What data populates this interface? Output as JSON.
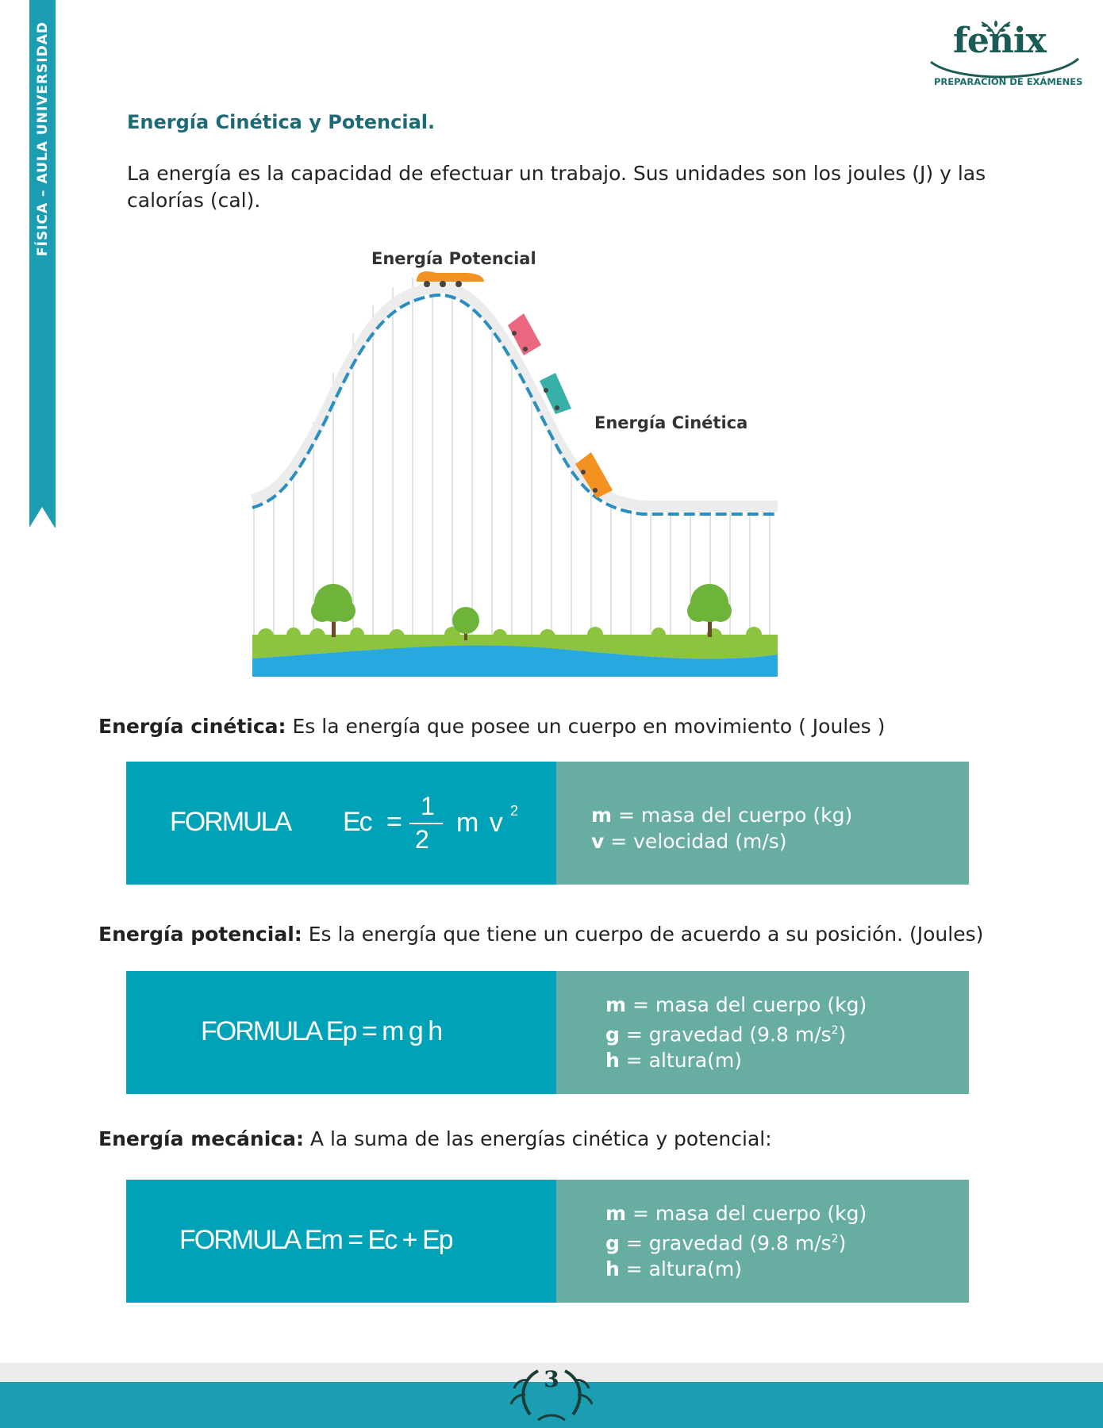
{
  "sidebar": {
    "label": "FÍSICA – AULA UNIVERSIDAD"
  },
  "logo": {
    "word": "fenix",
    "tagline": "PREPARACIÓN DE EXÁMENES"
  },
  "title": "Energía Cinética y Potencial.",
  "intro": "La energía es la capacidad de efectuar un trabajo. Sus unidades son los joules (J) y las calorías (cal).",
  "diagram": {
    "label_potential": "Energía Potencial",
    "label_kinetic": "Energía Cinética"
  },
  "kinetic": {
    "term": "Energía cinética:",
    "definition": " Es la energía que posee un cuerpo en movimiento ( Joules )",
    "formula_label": "FORMULA",
    "formula_lhs": "Ec",
    "formula_eq": "=",
    "fraction_num": "1",
    "fraction_den": "2",
    "formula_rhs": "m v",
    "exponent": "2",
    "vars": [
      {
        "sym": "m",
        "desc": " = masa del cuerpo (kg)"
      },
      {
        "sym": "v",
        "desc": " = velocidad (m/s)"
      }
    ]
  },
  "potential": {
    "term": "Energía potencial:",
    "definition": " Es la energía que tiene un cuerpo de acuerdo a su posición. (Joules)",
    "formula": "FORMULA  Ep  = m g h",
    "vars": [
      {
        "sym": "m",
        "desc": " = masa del cuerpo (kg)"
      },
      {
        "sym": "g",
        "desc": " = gravedad (9.8 m/s",
        "sup": "2",
        "tail": ")"
      },
      {
        "sym": "h",
        "desc": " = altura(m)"
      }
    ]
  },
  "mechanical": {
    "term": "Energía mecánica:",
    "definition": " A la suma de las energías cinética y potencial:",
    "formula": "FORMULA  Em  = Ec  + Ep",
    "vars": [
      {
        "sym": "m",
        "desc": " = masa del cuerpo (kg)"
      },
      {
        "sym": "g",
        "desc": " = gravedad (9.8 m/s",
        "sup": "2",
        "tail": ")"
      },
      {
        "sym": "h",
        "desc": " = altura(m)"
      }
    ]
  },
  "footer": {
    "page_number": "3"
  },
  "colors": {
    "teal": "#00a2b7",
    "sage": "#68ada1",
    "band": "#1b9eb2",
    "title": "#1a6b75"
  }
}
